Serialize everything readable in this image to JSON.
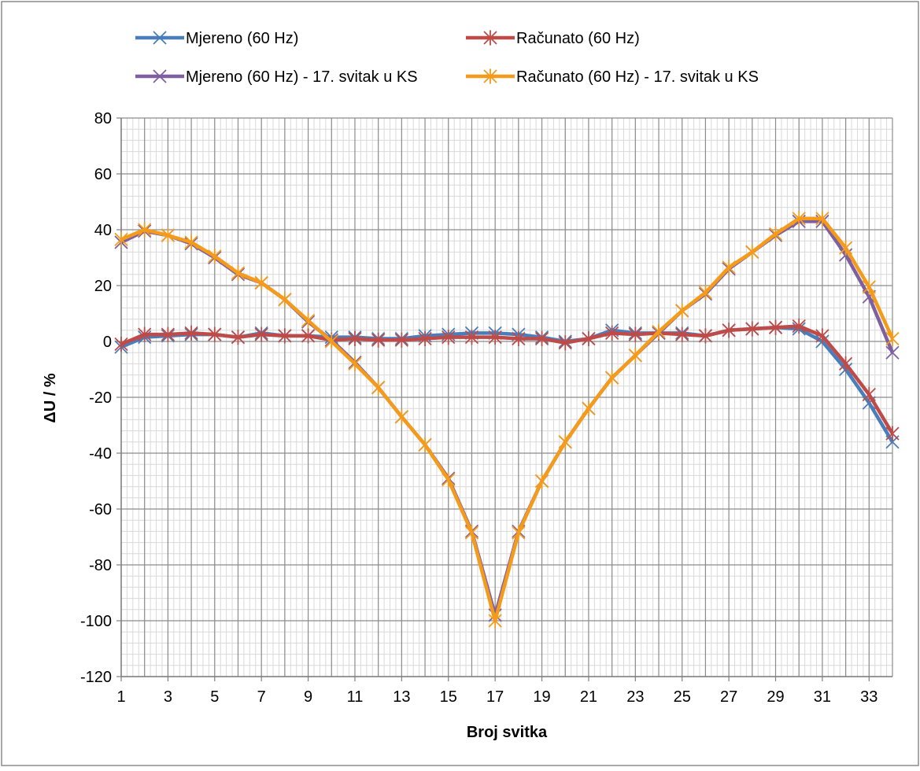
{
  "chart_data": {
    "type": "line",
    "title": "",
    "xlabel": "Broj svitka",
    "ylabel": "ΔU / %",
    "xlim": [
      1,
      34
    ],
    "ylim": [
      -120,
      80
    ],
    "y_major_step": 20,
    "y_minor_step": 4,
    "x_tick_labels": [
      "1",
      "3",
      "5",
      "7",
      "9",
      "11",
      "13",
      "15",
      "17",
      "19",
      "21",
      "23",
      "25",
      "27",
      "29",
      "31",
      "33"
    ],
    "y_tick_labels": [
      "80",
      "60",
      "40",
      "20",
      "0",
      "-20",
      "-40",
      "-60",
      "-80",
      "-100",
      "-120"
    ],
    "grid": true,
    "legend_position": "top",
    "x": [
      1,
      2,
      3,
      4,
      5,
      6,
      7,
      8,
      9,
      10,
      11,
      12,
      13,
      14,
      15,
      16,
      17,
      18,
      19,
      20,
      21,
      22,
      23,
      24,
      25,
      26,
      27,
      28,
      29,
      30,
      31,
      32,
      33,
      34
    ],
    "series": [
      {
        "name": "Mjereno (60 Hz)",
        "color": "#4a7ebb",
        "marker": "x",
        "values": [
          -2,
          1.5,
          2,
          2.5,
          2.5,
          1.5,
          3,
          2,
          2,
          1.5,
          1.5,
          1,
          1,
          2,
          2.5,
          3,
          3,
          2.5,
          1.5,
          0,
          1,
          4,
          3,
          3,
          3,
          2,
          4,
          4.5,
          5,
          4.5,
          0,
          -10,
          -22,
          -36
        ]
      },
      {
        "name": "Računato (60 Hz)",
        "color": "#be4b48",
        "marker": "star",
        "values": [
          -1,
          2.5,
          2.5,
          3,
          2.5,
          1.5,
          2.5,
          2,
          2,
          0.5,
          1,
          0.5,
          0.5,
          1,
          1.5,
          1.5,
          1.5,
          1,
          1,
          -0.5,
          1,
          3,
          2.5,
          3,
          2.5,
          2,
          4,
          4.5,
          5,
          5.5,
          2,
          -8,
          -19,
          -33
        ]
      },
      {
        "name": "Mjereno (60 Hz) - 17. svitak u KS",
        "color": "#7e5fa0",
        "marker": "x",
        "values": [
          35.5,
          39.5,
          38,
          35,
          30,
          24,
          21,
          15,
          7,
          0.5,
          -7.5,
          -16.5,
          -27,
          -37,
          -49,
          -68,
          -98,
          -68,
          -50,
          -36,
          -24,
          -13,
          -5,
          3,
          11,
          17,
          26,
          32,
          38,
          43,
          43,
          31,
          16,
          -4
        ]
      },
      {
        "name": "Računato (60 Hz) - 17. svitak u KS",
        "color": "#f59b1b",
        "marker": "star",
        "values": [
          36.5,
          40,
          38,
          35.5,
          30.5,
          24.5,
          21,
          15,
          7.5,
          0,
          -8,
          -16.5,
          -27,
          -37,
          -49.5,
          -68.5,
          -100,
          -68.5,
          -50,
          -36,
          -24,
          -13,
          -5,
          3.5,
          11,
          17.5,
          26.5,
          32,
          38.5,
          44,
          44,
          33.5,
          19.5,
          1
        ]
      }
    ]
  }
}
